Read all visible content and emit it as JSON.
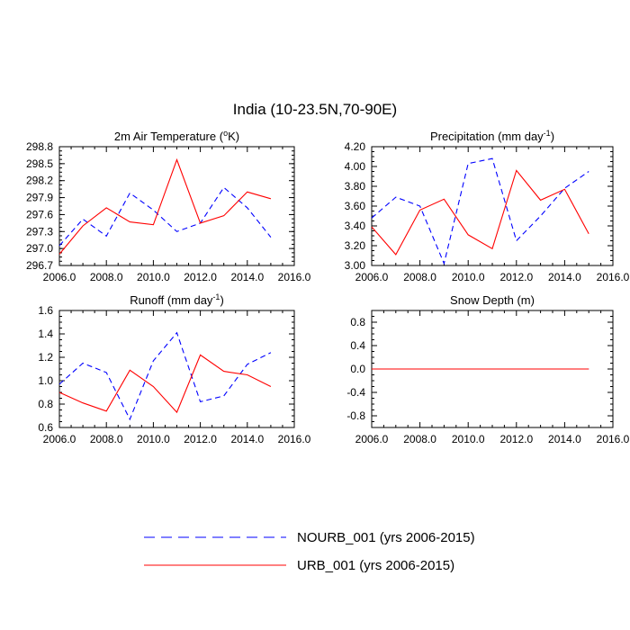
{
  "figure": {
    "title": "India (10-23.5N,70-90E)"
  },
  "legend": [
    {
      "label": "NOURB_001 (yrs 2006-2015)",
      "color": "#0000ff",
      "dash": "dashed"
    },
    {
      "label": "URB_001 (yrs 2006-2015)",
      "color": "#ff0000",
      "dash": "solid"
    }
  ],
  "chart_data": [
    {
      "type": "line",
      "title": "2m Air Temperature",
      "title_unit": "(°K)",
      "x": [
        2006,
        2007,
        2008,
        2009,
        2010,
        2011,
        2012,
        2013,
        2014,
        2015
      ],
      "xlim": [
        2006,
        2016
      ],
      "xticks": [
        "2006.0",
        "2008.0",
        "2010.0",
        "2012.0",
        "2014.0",
        "2016.0"
      ],
      "ylim": [
        296.7,
        298.8
      ],
      "yticks": [
        "296.7",
        "297.0",
        "297.3",
        "297.6",
        "297.9",
        "298.2",
        "298.5",
        "298.8"
      ],
      "series": [
        {
          "name": "NOURB_001 (yrs 2006-2015)",
          "values": [
            297.05,
            297.52,
            297.22,
            297.98,
            297.68,
            297.3,
            297.45,
            298.08,
            297.72,
            297.2
          ]
        },
        {
          "name": "URB_001 (yrs 2006-2015)",
          "values": [
            296.9,
            297.4,
            297.72,
            297.47,
            297.42,
            298.57,
            297.45,
            297.58,
            298.0,
            297.88
          ]
        }
      ]
    },
    {
      "type": "line",
      "title": "Precipitation",
      "title_unit": "(mm day-1)",
      "x": [
        2006,
        2007,
        2008,
        2009,
        2010,
        2011,
        2012,
        2013,
        2014,
        2015
      ],
      "xlim": [
        2006,
        2016
      ],
      "xticks": [
        "2006.0",
        "2008.0",
        "2010.0",
        "2012.0",
        "2014.0",
        "2016.0"
      ],
      "ylim": [
        3.0,
        4.2
      ],
      "yticks": [
        "3.00",
        "3.20",
        "3.40",
        "3.60",
        "3.80",
        "4.00",
        "4.20"
      ],
      "series": [
        {
          "name": "NOURB_001 (yrs 2006-2015)",
          "values": [
            3.48,
            3.69,
            3.6,
            3.02,
            4.03,
            4.08,
            3.25,
            3.5,
            3.78,
            3.95
          ]
        },
        {
          "name": "URB_001 (yrs 2006-2015)",
          "values": [
            3.39,
            3.11,
            3.56,
            3.67,
            3.31,
            3.17,
            3.96,
            3.66,
            3.77,
            3.32
          ]
        }
      ]
    },
    {
      "type": "line",
      "title": "Runoff",
      "title_unit": "(mm day-1)",
      "x": [
        2006,
        2007,
        2008,
        2009,
        2010,
        2011,
        2012,
        2013,
        2014,
        2015
      ],
      "xlim": [
        2006,
        2016
      ],
      "xticks": [
        "2006.0",
        "2008.0",
        "2010.0",
        "2012.0",
        "2014.0",
        "2016.0"
      ],
      "ylim": [
        0.6,
        1.6
      ],
      "yticks": [
        "0.6",
        "0.8",
        "1.0",
        "1.2",
        "1.4",
        "1.6"
      ],
      "series": [
        {
          "name": "NOURB_001 (yrs 2006-2015)",
          "values": [
            0.97,
            1.15,
            1.07,
            0.67,
            1.17,
            1.41,
            0.82,
            0.87,
            1.14,
            1.24
          ]
        },
        {
          "name": "URB_001 (yrs 2006-2015)",
          "values": [
            0.9,
            0.81,
            0.74,
            1.09,
            0.95,
            0.73,
            1.22,
            1.08,
            1.05,
            0.95
          ]
        }
      ]
    },
    {
      "type": "line",
      "title": "Snow Depth",
      "title_unit": "(m)",
      "x": [
        2006,
        2007,
        2008,
        2009,
        2010,
        2011,
        2012,
        2013,
        2014,
        2015
      ],
      "xlim": [
        2006,
        2016
      ],
      "xticks": [
        "2006.0",
        "2008.0",
        "2010.0",
        "2012.0",
        "2014.0",
        "2016.0"
      ],
      "ylim": [
        -1.0,
        1.0
      ],
      "yticks": [
        "-0.8",
        "-0.4",
        "0.0",
        "0.4",
        "0.8"
      ],
      "series": [
        {
          "name": "NOURB_001 (yrs 2006-2015)",
          "values": [
            0,
            0,
            0,
            0,
            0,
            0,
            0,
            0,
            0,
            0
          ]
        },
        {
          "name": "URB_001 (yrs 2006-2015)",
          "values": [
            0,
            0,
            0,
            0,
            0,
            0,
            0,
            0,
            0,
            0
          ]
        }
      ]
    }
  ]
}
